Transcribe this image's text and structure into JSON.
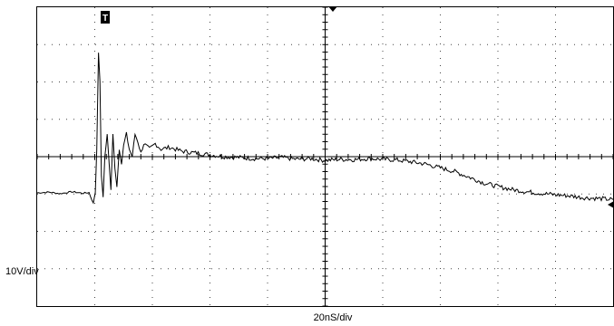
{
  "chart_data": {
    "type": "line",
    "title": "",
    "xlabel": "20nS/div",
    "ylabel": "10V/div",
    "grid": "dotted, 10 horizontal x 8 vertical divisions",
    "x_unit": "ns",
    "y_unit": "V",
    "xlim": [
      0,
      200
    ],
    "ylim": [
      -30,
      50
    ],
    "series": [
      {
        "values_xy": [
          [
            0,
            0.3
          ],
          [
            4,
            0.5
          ],
          [
            8,
            0.1
          ],
          [
            12,
            0.6
          ],
          [
            16,
            0.2
          ],
          [
            18,
            0.4
          ],
          [
            19.5,
            -2.5
          ],
          [
            20.2,
            0.5
          ],
          [
            20.7,
            12
          ],
          [
            21.3,
            38
          ],
          [
            21.8,
            30
          ],
          [
            22.3,
            5
          ],
          [
            22.9,
            -1
          ],
          [
            23.5,
            10
          ],
          [
            24.3,
            16
          ],
          [
            25.0,
            8
          ],
          [
            25.6,
            1
          ],
          [
            26.3,
            16
          ],
          [
            27.0,
            7
          ],
          [
            27.7,
            2
          ],
          [
            28.5,
            12
          ],
          [
            29.3,
            8
          ],
          [
            30,
            13
          ],
          [
            31,
            16
          ],
          [
            32,
            12
          ],
          [
            33,
            10
          ],
          [
            34,
            16
          ],
          [
            35,
            14
          ],
          [
            36,
            11
          ],
          [
            37,
            13.5
          ],
          [
            39,
            12
          ],
          [
            41,
            13.5
          ],
          [
            43,
            12
          ],
          [
            46,
            12.5
          ],
          [
            50,
            11.5
          ],
          [
            55,
            11
          ],
          [
            60,
            10.5
          ],
          [
            65,
            10
          ],
          [
            70,
            9.8
          ],
          [
            75,
            9.5
          ],
          [
            80,
            9.5
          ],
          [
            85,
            9.8
          ],
          [
            90,
            9.3
          ],
          [
            95,
            9.5
          ],
          [
            100,
            9
          ],
          [
            105,
            9.3
          ],
          [
            110,
            9.2
          ],
          [
            115,
            9.5
          ],
          [
            120,
            9.3
          ],
          [
            125,
            9.1
          ],
          [
            130,
            8.6
          ],
          [
            135,
            8
          ],
          [
            140,
            7
          ],
          [
            145,
            6
          ],
          [
            150,
            4.5
          ],
          [
            155,
            3
          ],
          [
            160,
            2
          ],
          [
            165,
            1.2
          ],
          [
            170,
            0.6
          ],
          [
            175,
            0.2
          ],
          [
            180,
            -0.2
          ],
          [
            185,
            -0.5
          ],
          [
            190,
            -1
          ],
          [
            195,
            -1.2
          ],
          [
            200,
            -1.5
          ]
        ]
      }
    ]
  },
  "markers": {
    "trigger_position": "T",
    "trigger_icon": "trigger-t-icon",
    "level_icon": "trigger-level-arrow-icon",
    "time_ref_icon": "time-reference-marker-icon"
  },
  "colors": {
    "background": "#ffffff",
    "grid": "#444444",
    "axes": "#000000",
    "trace": "#000000"
  }
}
